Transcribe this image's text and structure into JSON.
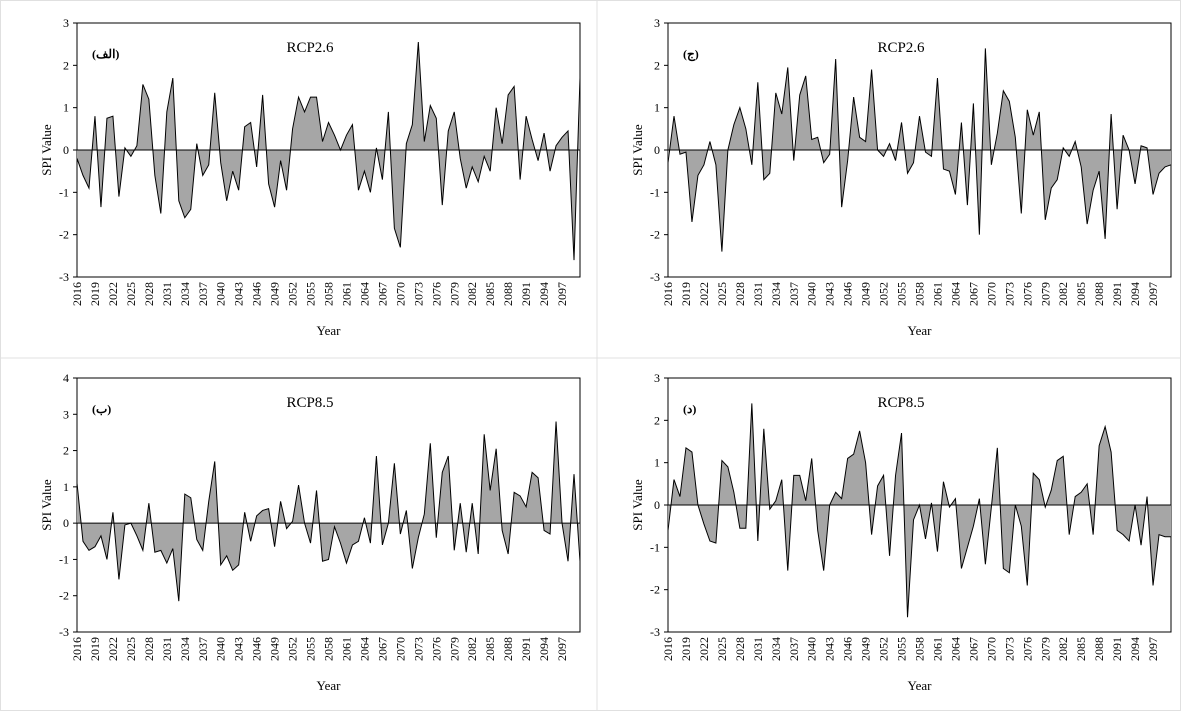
{
  "chart_data": [
    {
      "type": "area",
      "panel_label": "(الف)",
      "title": "RCP2.6",
      "xlabel": "Year",
      "ylabel": "SPI Value",
      "color": "#a6a6a6",
      "line_color": "#000000",
      "categories": [
        "2016",
        null,
        null,
        "2019",
        null,
        null,
        "2022",
        null,
        null,
        "2025",
        null,
        null,
        "2028",
        null,
        null,
        "2031",
        null,
        null,
        "2034",
        null,
        null,
        "2037",
        null,
        null,
        "2040",
        null,
        null,
        "2043",
        null,
        null,
        "2046",
        null,
        null,
        "2049",
        null,
        null,
        "2052",
        null,
        null,
        "2055",
        null,
        null,
        "2058",
        null,
        null,
        "2061",
        null,
        null,
        "2064",
        null,
        null,
        "2067",
        null,
        null,
        "2070",
        null,
        null,
        "2073",
        null,
        null,
        "2076",
        null,
        null,
        "2079",
        null,
        null,
        "2082",
        null,
        null,
        "2085",
        null,
        null,
        "2088",
        null,
        null,
        "2091",
        null,
        null,
        "2094",
        null,
        null,
        "2097",
        null,
        null,
        null
      ],
      "values": [
        -0.2,
        -0.6,
        -0.9,
        0.8,
        -1.35,
        0.75,
        0.8,
        -1.1,
        0.05,
        -0.15,
        0.1,
        1.55,
        1.2,
        -0.6,
        -1.5,
        0.9,
        1.7,
        -1.2,
        -1.6,
        -1.4,
        0.15,
        -0.6,
        -0.35,
        1.35,
        -0.3,
        -1.2,
        -0.5,
        -0.95,
        0.55,
        0.65,
        -0.4,
        1.3,
        -0.8,
        -1.35,
        -0.25,
        -0.95,
        0.5,
        1.25,
        0.9,
        1.25,
        1.25,
        0.2,
        0.65,
        0.35,
        0.0,
        0.35,
        0.6,
        -0.95,
        -0.5,
        -1.0,
        0.05,
        -0.7,
        0.9,
        -1.85,
        -2.3,
        0.15,
        0.6,
        2.55,
        0.2,
        1.05,
        0.75,
        -1.3,
        0.45,
        0.9,
        -0.2,
        -0.9,
        -0.4,
        -0.75,
        -0.15,
        -0.5,
        1.0,
        0.15,
        1.3,
        1.5,
        -0.7,
        0.8,
        0.25,
        -0.25,
        0.4,
        -0.5,
        0.1,
        0.3,
        0.45,
        -2.6,
        1.7
      ],
      "ylim": [
        -3,
        3
      ],
      "yticks": [
        -3,
        -2,
        -1,
        0,
        1,
        2,
        3
      ]
    },
    {
      "type": "area",
      "panel_label": "(ج)",
      "title": "RCP2.6",
      "xlabel": "Year",
      "ylabel": "SPI Value",
      "color": "#a6a6a6",
      "line_color": "#000000",
      "categories": [
        "2016",
        null,
        null,
        "2019",
        null,
        null,
        "2022",
        null,
        null,
        "2025",
        null,
        null,
        "2028",
        null,
        null,
        "2031",
        null,
        null,
        "2034",
        null,
        null,
        "2037",
        null,
        null,
        "2040",
        null,
        null,
        "2043",
        null,
        null,
        "2046",
        null,
        null,
        "2049",
        null,
        null,
        "2052",
        null,
        null,
        "2055",
        null,
        null,
        "2058",
        null,
        null,
        "2061",
        null,
        null,
        "2064",
        null,
        null,
        "2067",
        null,
        null,
        "2070",
        null,
        null,
        "2073",
        null,
        null,
        "2076",
        null,
        null,
        "2079",
        null,
        null,
        "2082",
        null,
        null,
        "2085",
        null,
        null,
        "2088",
        null,
        null,
        "2091",
        null,
        null,
        "2094",
        null,
        null,
        "2097",
        null,
        null,
        null
      ],
      "values": [
        -0.3,
        0.8,
        -0.1,
        -0.05,
        -1.7,
        -0.6,
        -0.35,
        0.2,
        -0.35,
        -2.4,
        0.0,
        0.6,
        1.0,
        0.5,
        -0.35,
        1.6,
        -0.7,
        -0.55,
        1.35,
        0.85,
        1.95,
        -0.25,
        1.3,
        1.75,
        0.25,
        0.3,
        -0.3,
        -0.1,
        2.15,
        -1.35,
        -0.25,
        1.25,
        0.3,
        0.2,
        1.9,
        0.0,
        -0.15,
        0.15,
        -0.25,
        0.65,
        -0.55,
        -0.3,
        0.8,
        -0.05,
        -0.15,
        1.7,
        -0.45,
        -0.5,
        -1.05,
        0.65,
        -1.3,
        1.1,
        -2.0,
        2.4,
        -0.35,
        0.4,
        1.4,
        1.15,
        0.3,
        -1.5,
        0.95,
        0.35,
        0.9,
        -1.65,
        -0.9,
        -0.7,
        0.05,
        -0.15,
        0.2,
        -0.4,
        -1.75,
        -0.95,
        -0.5,
        -2.1,
        0.85,
        -1.4,
        0.35,
        0.0,
        -0.8,
        0.1,
        0.05,
        -1.05,
        -0.55,
        -0.4,
        -0.35
      ],
      "ylim": [
        -3,
        3
      ],
      "yticks": [
        -3,
        -2,
        -1,
        0,
        1,
        2,
        3
      ]
    },
    {
      "type": "area",
      "panel_label": "(ب)",
      "title": "RCP8.5",
      "xlabel": "Year",
      "ylabel": "SPI Value",
      "color": "#a6a6a6",
      "line_color": "#000000",
      "categories": [
        "2016",
        null,
        null,
        "2019",
        null,
        null,
        "2022",
        null,
        null,
        "2025",
        null,
        null,
        "2028",
        null,
        null,
        "2031",
        null,
        null,
        "2034",
        null,
        null,
        "2037",
        null,
        null,
        "2040",
        null,
        null,
        "2043",
        null,
        null,
        "2046",
        null,
        null,
        "2049",
        null,
        null,
        "2052",
        null,
        null,
        "2055",
        null,
        null,
        "2058",
        null,
        null,
        "2061",
        null,
        null,
        "2064",
        null,
        null,
        "2067",
        null,
        null,
        "2070",
        null,
        null,
        "2073",
        null,
        null,
        "2076",
        null,
        null,
        "2079",
        null,
        null,
        "2082",
        null,
        null,
        "2085",
        null,
        null,
        "2088",
        null,
        null,
        "2091",
        null,
        null,
        "2094",
        null,
        null,
        "2097",
        null,
        null,
        null
      ],
      "values": [
        1.1,
        -0.5,
        -0.75,
        -0.65,
        -0.35,
        -1.0,
        0.3,
        -1.55,
        -0.05,
        0.0,
        -0.35,
        -0.75,
        0.55,
        -0.8,
        -0.75,
        -1.1,
        -0.7,
        -2.15,
        0.8,
        0.7,
        -0.45,
        -0.75,
        0.6,
        1.7,
        -1.15,
        -0.9,
        -1.3,
        -1.15,
        0.3,
        -0.5,
        0.2,
        0.35,
        0.4,
        -0.65,
        0.6,
        -0.15,
        0.05,
        1.05,
        0.0,
        -0.55,
        0.9,
        -1.05,
        -1.0,
        -0.1,
        -0.55,
        -1.1,
        -0.6,
        -0.5,
        0.15,
        -0.55,
        1.85,
        -0.6,
        0.0,
        1.65,
        -0.3,
        0.35,
        -1.25,
        -0.4,
        0.25,
        2.2,
        -0.4,
        1.4,
        1.85,
        -0.75,
        0.55,
        -0.8,
        0.55,
        -0.85,
        2.45,
        0.9,
        2.05,
        -0.2,
        -0.85,
        0.85,
        0.75,
        0.45,
        1.4,
        1.25,
        -0.2,
        -0.3,
        2.8,
        0.0,
        -1.05,
        1.35,
        -1.05
      ],
      "ylim": [
        -3,
        4
      ],
      "yticks": [
        -3,
        -2,
        -1,
        0,
        1,
        2,
        3,
        4
      ]
    },
    {
      "type": "area",
      "panel_label": "(د)",
      "title": "RCP8.5",
      "xlabel": "Year",
      "ylabel": "SPI Value",
      "color": "#a6a6a6",
      "line_color": "#000000",
      "categories": [
        "2016",
        null,
        null,
        "2019",
        null,
        null,
        "2022",
        null,
        null,
        "2025",
        null,
        null,
        "2028",
        null,
        null,
        "2031",
        null,
        null,
        "2034",
        null,
        null,
        "2037",
        null,
        null,
        "2040",
        null,
        null,
        "2043",
        null,
        null,
        "2046",
        null,
        null,
        "2049",
        null,
        null,
        "2052",
        null,
        null,
        "2055",
        null,
        null,
        "2058",
        null,
        null,
        "2061",
        null,
        null,
        "2064",
        null,
        null,
        "2067",
        null,
        null,
        "2070",
        null,
        null,
        "2073",
        null,
        null,
        "2076",
        null,
        null,
        "2079",
        null,
        null,
        "2082",
        null,
        null,
        "2085",
        null,
        null,
        "2088",
        null,
        null,
        "2091",
        null,
        null,
        "2094",
        null,
        null,
        "2097",
        null,
        null,
        null
      ],
      "values": [
        -0.6,
        0.6,
        0.2,
        1.35,
        1.25,
        0.0,
        -0.45,
        -0.85,
        -0.9,
        1.05,
        0.9,
        0.3,
        -0.55,
        -0.55,
        2.4,
        -0.85,
        1.8,
        -0.1,
        0.1,
        0.6,
        -1.55,
        0.7,
        0.7,
        0.1,
        1.1,
        -0.6,
        -1.55,
        0.0,
        0.3,
        0.15,
        1.1,
        1.2,
        1.75,
        1.0,
        -0.7,
        0.45,
        0.7,
        -1.2,
        0.7,
        1.7,
        -2.65,
        -0.35,
        0.0,
        -0.8,
        0.05,
        -1.1,
        0.55,
        -0.05,
        0.15,
        -1.5,
        -1.0,
        -0.5,
        0.15,
        -1.4,
        -0.05,
        1.35,
        -1.5,
        -1.6,
        0.0,
        -0.5,
        -1.9,
        0.75,
        0.6,
        -0.05,
        0.35,
        1.05,
        1.15,
        -0.7,
        0.2,
        0.3,
        0.5,
        -0.7,
        1.4,
        1.85,
        1.25,
        -0.6,
        -0.7,
        -0.85,
        0.0,
        -0.95,
        0.2,
        -1.9,
        -0.7,
        -0.75,
        -0.75
      ],
      "ylim": [
        -3,
        3
      ],
      "yticks": [
        -3,
        -2,
        -1,
        0,
        1,
        2,
        3
      ]
    }
  ]
}
